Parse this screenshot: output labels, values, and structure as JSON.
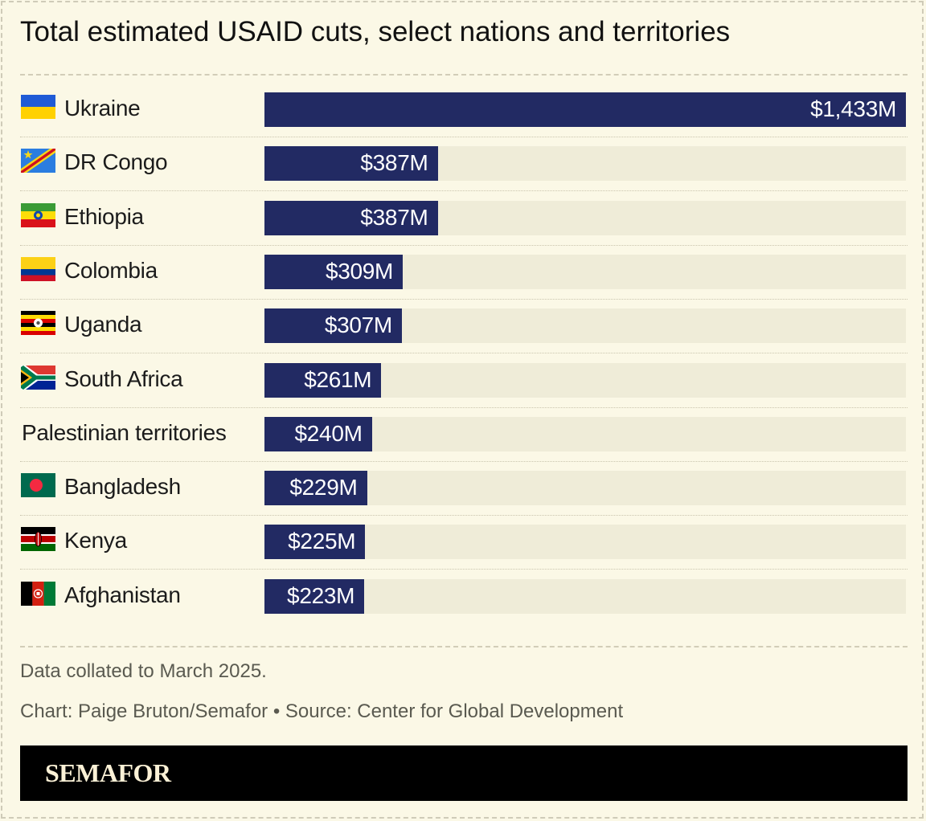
{
  "title": "Total estimated USAID cuts, select nations and territories",
  "notes": {
    "data_note": "Data collated to March 2025.",
    "credit": "Chart: Paige Bruton/Semafor • Source: Center for Global Development"
  },
  "footer": {
    "logo": "SEMAFOR"
  },
  "colors": {
    "bar": "#222a63",
    "track": "#efecd8",
    "background": "#fbf8e6"
  },
  "chart_data": {
    "type": "bar",
    "orientation": "horizontal",
    "title": "Total estimated USAID cuts, select nations and territories",
    "xlabel": "",
    "ylabel": "",
    "unit": "$M",
    "xlim": [
      0,
      1433
    ],
    "grid": false,
    "legend": "none",
    "categories": [
      "Ukraine",
      "DR Congo",
      "Ethiopia",
      "Colombia",
      "Uganda",
      "South Africa",
      "Palestinian territories",
      "Bangladesh",
      "Kenya",
      "Afghanistan"
    ],
    "values": [
      1433,
      387,
      387,
      309,
      307,
      261,
      240,
      229,
      225,
      223
    ],
    "value_labels": [
      "$1,433M",
      "$387M",
      "$387M",
      "$309M",
      "$307M",
      "$261M",
      "$240M",
      "$229M",
      "$225M",
      "$223M"
    ],
    "flags": [
      "ukraine-flag-icon",
      "dr-congo-flag-icon",
      "ethiopia-flag-icon",
      "colombia-flag-icon",
      "uganda-flag-icon",
      "south-africa-flag-icon",
      "",
      "bangladesh-flag-icon",
      "kenya-flag-icon",
      "afghanistan-flag-icon"
    ]
  }
}
